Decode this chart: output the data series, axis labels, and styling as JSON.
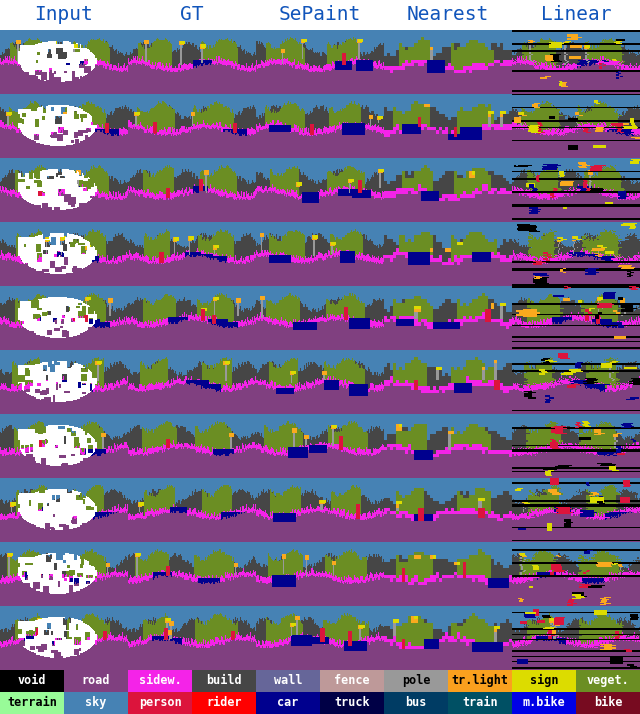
{
  "title_labels": [
    "Input",
    "GT",
    "SePaint",
    "Nearest",
    "Linear"
  ],
  "title_color": "#1155bb",
  "title_fontsize": 14,
  "legend_row1_labels": [
    "void",
    "road",
    "sidew.",
    "build",
    "wall",
    "fence",
    "pole",
    "tr.light",
    "sign",
    "veget."
  ],
  "legend_row2_labels": [
    "terrain",
    "sky",
    "person",
    "rider",
    "car",
    "truck",
    "bus",
    "train",
    "m.bike",
    "bike"
  ],
  "legend_row1_bg": [
    "#000000",
    "#804080",
    "#f423e8",
    "#464646",
    "#666699",
    "#be9999",
    "#999999",
    "#faa01e",
    "#dcdc00",
    "#6b8e23"
  ],
  "legend_row2_bg": [
    "#98fb98",
    "#4682b4",
    "#dc143c",
    "#ff0000",
    "#00008e",
    "#000046",
    "#003c64",
    "#005064",
    "#0000e6",
    "#770b20"
  ],
  "legend_row1_fg": [
    "#ffffff",
    "#ffffff",
    "#ffffff",
    "#ffffff",
    "#ffffff",
    "#ffffff",
    "#000000",
    "#000000",
    "#000000",
    "#ffffff"
  ],
  "legend_row2_fg": [
    "#000000",
    "#ffffff",
    "#ffffff",
    "#ffffff",
    "#ffffff",
    "#ffffff",
    "#ffffff",
    "#ffffff",
    "#ffffff",
    "#ffffff"
  ],
  "grid_rows": 10,
  "grid_cols": 5,
  "bg_color": "#ffffff"
}
